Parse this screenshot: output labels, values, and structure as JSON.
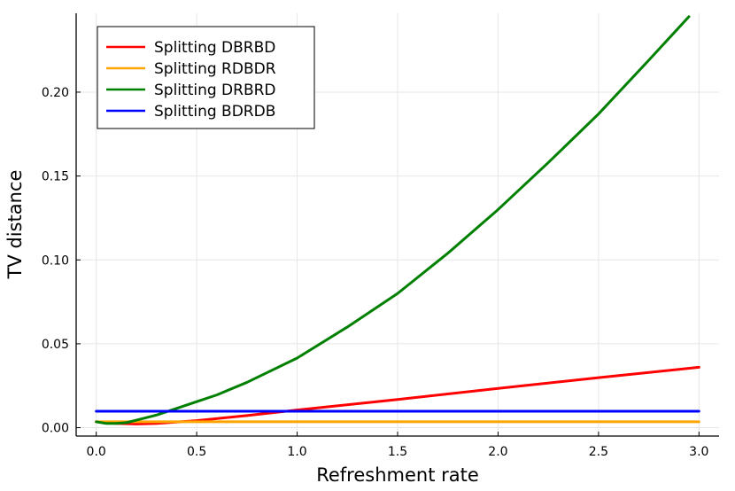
{
  "chart_data": {
    "type": "line",
    "xlabel": "Refreshment rate",
    "ylabel": "TV distance",
    "xlim": [
      -0.1,
      3.1
    ],
    "ylim": [
      -0.005,
      0.247
    ],
    "xticks": [
      0.0,
      0.5,
      1.0,
      1.5,
      2.0,
      2.5,
      3.0
    ],
    "xtick_labels": [
      "0.0",
      "0.5",
      "1.0",
      "1.5",
      "2.0",
      "2.5",
      "3.0"
    ],
    "yticks": [
      0.0,
      0.05,
      0.1,
      0.15,
      0.2
    ],
    "ytick_labels": [
      "0.00",
      "0.05",
      "0.10",
      "0.15",
      "0.20"
    ],
    "grid": true,
    "legend_position": "top-left",
    "series": [
      {
        "name": "Splitting DBRBD",
        "color": "#ff0000",
        "x": [
          0.0,
          0.1,
          0.2,
          0.3,
          0.5,
          0.75,
          1.0,
          1.5,
          2.0,
          2.5,
          3.0
        ],
        "y": [
          0.0035,
          0.0025,
          0.0022,
          0.0025,
          0.0042,
          0.0072,
          0.0105,
          0.0168,
          0.0234,
          0.0298,
          0.036
        ]
      },
      {
        "name": "Splitting RDBDR",
        "color": "#ffa500",
        "x": [
          0.0,
          3.0
        ],
        "y": [
          0.0035,
          0.0035
        ]
      },
      {
        "name": "Splitting DRBRD",
        "color": "#008000",
        "x": [
          0.0,
          0.05,
          0.1,
          0.15,
          0.2,
          0.3,
          0.4,
          0.5,
          0.6,
          0.75,
          1.0,
          1.25,
          1.5,
          1.75,
          2.0,
          2.25,
          2.5,
          2.75,
          2.95
        ],
        "y": [
          0.0035,
          0.0025,
          0.0025,
          0.003,
          0.0045,
          0.0075,
          0.0115,
          0.0155,
          0.0195,
          0.027,
          0.0415,
          0.06,
          0.08,
          0.104,
          0.13,
          0.158,
          0.187,
          0.219,
          0.245
        ]
      },
      {
        "name": "Splitting BDRDB",
        "color": "#0000ff",
        "x": [
          0.0,
          3.0
        ],
        "y": [
          0.0098,
          0.0098
        ]
      }
    ]
  }
}
